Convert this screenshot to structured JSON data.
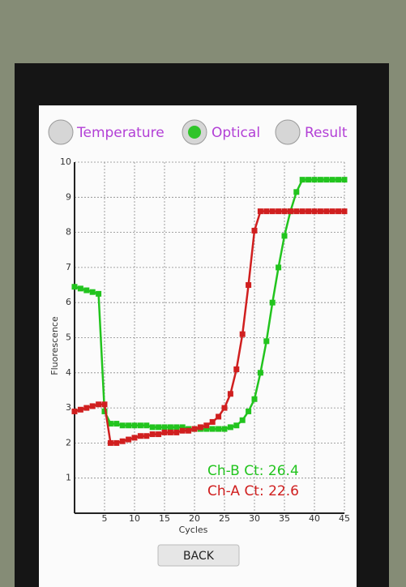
{
  "tabs": [
    "Temperature",
    "Optical",
    "Result"
  ],
  "button": "BACK",
  "chart_data": {
    "type": "line",
    "xlabel": "Cycles",
    "ylabel": "Fluorescence",
    "xlim": [
      0,
      45
    ],
    "xticks": [
      5,
      10,
      15,
      20,
      25,
      30,
      35,
      40,
      45
    ],
    "ylim": [
      0,
      10
    ],
    "yticks": [
      1,
      2,
      3,
      4,
      5,
      6,
      7,
      8,
      9,
      10
    ],
    "grid": true,
    "x": [
      0,
      1,
      2,
      3,
      4,
      5,
      6,
      7,
      8,
      9,
      10,
      11,
      12,
      13,
      14,
      15,
      16,
      17,
      18,
      19,
      20,
      21,
      22,
      23,
      24,
      25,
      26,
      27,
      28,
      29,
      30,
      31,
      32,
      33,
      34,
      35,
      36,
      37,
      38,
      39,
      40,
      41,
      42,
      43,
      44,
      45
    ],
    "series": [
      {
        "color": "#22c41e",
        "values": [
          6.45,
          6.4,
          6.35,
          6.3,
          6.25,
          2.9,
          2.55,
          2.55,
          2.5,
          2.5,
          2.5,
          2.5,
          2.5,
          2.45,
          2.45,
          2.45,
          2.45,
          2.45,
          2.45,
          2.4,
          2.4,
          2.4,
          2.4,
          2.4,
          2.4,
          2.4,
          2.45,
          2.5,
          2.65,
          2.9,
          3.25,
          4.0,
          4.9,
          6.0,
          7.0,
          7.9,
          8.6,
          9.15,
          9.5,
          9.5,
          9.5,
          9.5,
          9.5,
          9.5,
          9.5,
          9.5
        ]
      },
      {
        "color": "#d01f1f",
        "values": [
          2.9,
          2.95,
          3.0,
          3.05,
          3.1,
          3.1,
          2.0,
          2.0,
          2.05,
          2.1,
          2.15,
          2.2,
          2.2,
          2.25,
          2.25,
          2.3,
          2.3,
          2.3,
          2.35,
          2.35,
          2.4,
          2.45,
          2.5,
          2.6,
          2.75,
          3.0,
          3.4,
          4.1,
          5.1,
          6.5,
          8.05,
          8.6,
          8.6,
          8.6,
          8.6,
          8.6,
          8.6,
          8.6,
          8.6,
          8.6,
          8.6,
          8.6,
          8.6,
          8.6,
          8.6,
          8.6
        ]
      }
    ],
    "annotations": [
      {
        "text": "Ch-B Ct: 26.4",
        "color": "#22c41e"
      },
      {
        "text": "Ch-A Ct: 22.6",
        "color": "#d01f1f"
      }
    ]
  }
}
